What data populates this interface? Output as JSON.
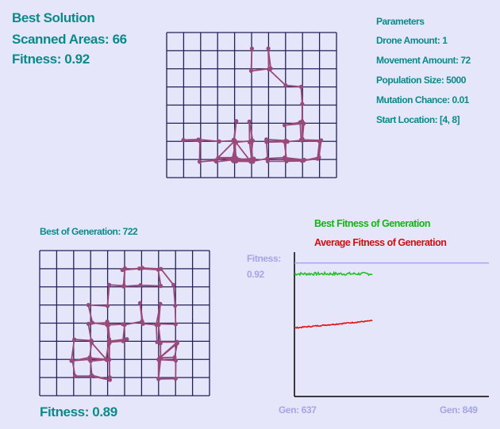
{
  "best_solution": {
    "title": "Best Solution",
    "scanned_label": "Scanned Areas: 66",
    "fitness_label": "Fitness: 0.92"
  },
  "parameters": {
    "title": "Parameters",
    "drone_amount": "Drone Amount: 1",
    "movement_amount": "Movement Amount: 72",
    "population_size": "Population Size: 5000",
    "mutation_chance": "Mutation Chance: 0.01",
    "start_location": "Start Location: [4, 8]"
  },
  "generation": {
    "title": "Best of Generation: 722",
    "fitness_label": "Fitness: 0.89"
  },
  "colors": {
    "background": "#e6e6fa",
    "grid": "#24205c",
    "path": "#9a4a7a",
    "label": "#0b8a8a",
    "best_line": "#22c022",
    "avg_line": "#e01010",
    "ref_line": "#a4a4e6"
  },
  "chart_data": {
    "type": "line",
    "legend": [
      "Best Fitness of Generation",
      "Average Fitness of Generation"
    ],
    "fitness_label": "Fitness:",
    "fitness_value": "0.92",
    "x_start_label": "Gen: 637",
    "x_end_label": "Gen: 849",
    "x_range": [
      637,
      849
    ],
    "y_range": [
      0.55,
      0.95
    ],
    "reference_y": 0.92,
    "current_gen": 722,
    "series": [
      {
        "name": "Best Fitness of Generation",
        "start": 0.89,
        "end": 0.89,
        "noise": 0.004
      },
      {
        "name": "Average Fitness of Generation",
        "start": 0.74,
        "end": 0.76,
        "noise": 0.0015
      }
    ]
  }
}
